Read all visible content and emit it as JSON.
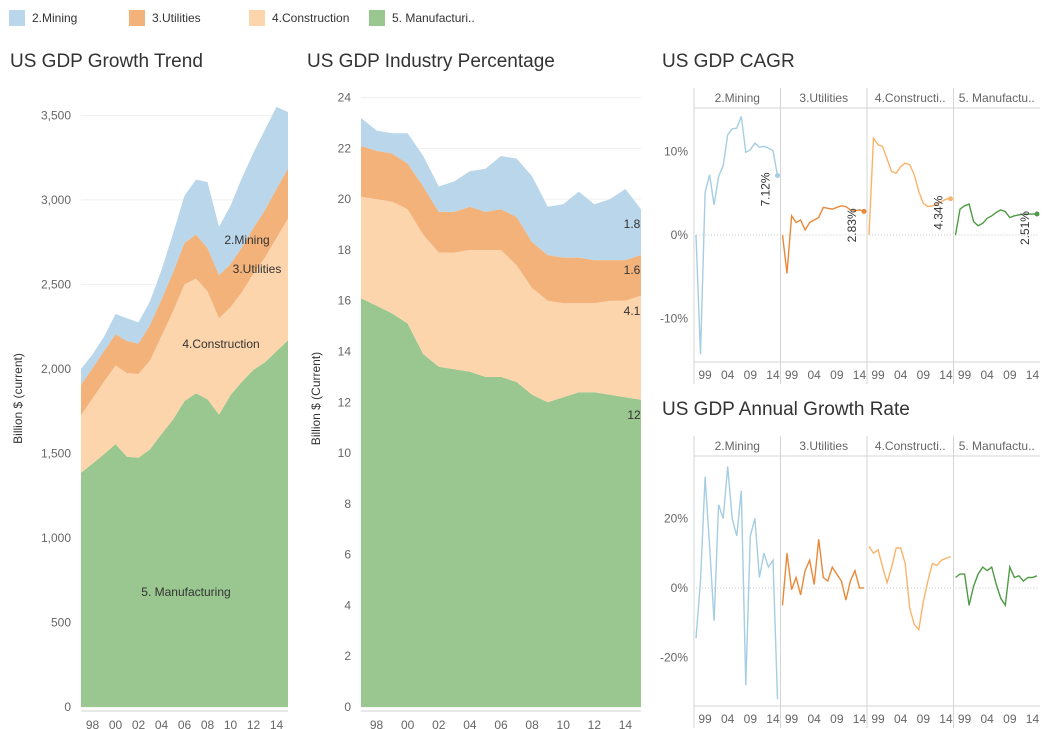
{
  "legend": {
    "items": [
      {
        "label": "2.Mining",
        "color": "#b9d6ea"
      },
      {
        "label": "3.Utilities",
        "color": "#f2b27a"
      },
      {
        "label": "4.Construction",
        "color": "#fdd5ac"
      },
      {
        "label": "5. Manufacturi..",
        "color": "#9ac68f"
      }
    ]
  },
  "colors": {
    "mining": "#b9d6ea",
    "utilities": "#f2b27a",
    "construction": "#fdd5ac",
    "manufacturing": "#9ac68f",
    "mining_line": "#a5cde3",
    "utilities_line": "#e8893a",
    "construction_line": "#f9b46a",
    "manufacturing_line": "#4f9a45"
  },
  "chart_data": [
    {
      "id": "trend",
      "type": "area",
      "stacked": true,
      "title": "US GDP Growth Trend",
      "ylabel": "Billion $ (current)",
      "ylim": [
        0,
        3650
      ],
      "yticks": [
        0,
        500,
        1000,
        1500,
        2000,
        2500,
        3000,
        3500
      ],
      "ytick_labels": [
        "0",
        "500",
        "1,000",
        "1,500",
        "2,000",
        "2,500",
        "3,000",
        "3,500"
      ],
      "xticks": [
        1998,
        2000,
        2002,
        2004,
        2006,
        2008,
        2010,
        2012,
        2014
      ],
      "xtick_labels": [
        "98",
        "00",
        "02",
        "04",
        "06",
        "08",
        "10",
        "12",
        "14"
      ],
      "x": [
        1997,
        1998,
        1999,
        2000,
        2001,
        2002,
        2003,
        2004,
        2005,
        2006,
        2007,
        2008,
        2009,
        2010,
        2011,
        2012,
        2013,
        2014,
        2015
      ],
      "series": [
        {
          "name": "5. Manufacturing",
          "key": "manufacturing",
          "values": [
            1385,
            1440,
            1495,
            1555,
            1480,
            1475,
            1525,
            1615,
            1700,
            1810,
            1855,
            1820,
            1730,
            1845,
            1925,
            1995,
            2040,
            2105,
            2170
          ]
        },
        {
          "name": "4.Construction",
          "key": "construction",
          "values": [
            340,
            385,
            430,
            465,
            495,
            495,
            525,
            580,
            640,
            690,
            680,
            640,
            570,
            520,
            530,
            570,
            620,
            670,
            720
          ]
        },
        {
          "name": "3.Utilities",
          "key": "utilities",
          "values": [
            180,
            180,
            180,
            185,
            190,
            180,
            210,
            215,
            230,
            245,
            260,
            255,
            255,
            255,
            265,
            270,
            280,
            290,
            295
          ]
        },
        {
          "name": "2.Mining",
          "key": "mining",
          "values": [
            95,
            80,
            85,
            120,
            135,
            125,
            140,
            175,
            230,
            280,
            325,
            390,
            285,
            345,
            410,
            445,
            475,
            485,
            335
          ]
        }
      ],
      "annotations": [
        "2.Mining",
        "3.Utilities",
        "4.Construction",
        "5. Manufacturing"
      ]
    },
    {
      "id": "percentage",
      "type": "area",
      "stacked": true,
      "title": "US GDP Industry Percentage",
      "ylabel": "Billion $ (Current)",
      "ylim": [
        0,
        24.3
      ],
      "yticks": [
        0,
        2,
        4,
        6,
        8,
        10,
        12,
        14,
        16,
        18,
        20,
        22,
        24
      ],
      "ytick_labels": [
        "0",
        "2",
        "4",
        "6",
        "8",
        "10",
        "12",
        "14",
        "16",
        "18",
        "20",
        "22",
        "24"
      ],
      "xticks": [
        1998,
        2000,
        2002,
        2004,
        2006,
        2008,
        2010,
        2012,
        2014
      ],
      "xtick_labels": [
        "98",
        "00",
        "02",
        "04",
        "06",
        "08",
        "10",
        "12",
        "14"
      ],
      "x": [
        1997,
        1998,
        1999,
        2000,
        2001,
        2002,
        2003,
        2004,
        2005,
        2006,
        2007,
        2008,
        2009,
        2010,
        2011,
        2012,
        2013,
        2014,
        2015
      ],
      "series": [
        {
          "name": "5. Manufacturing",
          "key": "manufacturing",
          "values": [
            16.1,
            15.8,
            15.5,
            15.1,
            13.9,
            13.4,
            13.3,
            13.2,
            13.0,
            13.0,
            12.8,
            12.3,
            12.0,
            12.2,
            12.4,
            12.4,
            12.3,
            12.2,
            12.1
          ]
        },
        {
          "name": "4.Construction",
          "key": "construction",
          "values": [
            4.0,
            4.2,
            4.4,
            4.5,
            4.7,
            4.5,
            4.6,
            4.8,
            5.0,
            5.0,
            4.6,
            4.2,
            4.0,
            3.7,
            3.5,
            3.5,
            3.7,
            3.8,
            4.1
          ]
        },
        {
          "name": "3.Utilities",
          "key": "utilities",
          "values": [
            2.0,
            1.9,
            1.9,
            1.8,
            1.9,
            1.6,
            1.6,
            1.7,
            1.5,
            1.6,
            1.9,
            1.8,
            1.8,
            1.8,
            1.8,
            1.7,
            1.6,
            1.6,
            1.6
          ]
        },
        {
          "name": "2.Mining",
          "key": "mining",
          "values": [
            1.1,
            0.8,
            0.8,
            1.2,
            1.2,
            1.0,
            1.2,
            1.4,
            1.7,
            2.1,
            2.3,
            2.6,
            1.9,
            2.1,
            2.6,
            2.2,
            2.4,
            2.8,
            1.8
          ]
        }
      ],
      "end_labels": [
        "1.8",
        "1.6",
        "4.1",
        "12"
      ]
    },
    {
      "id": "cagr",
      "type": "line",
      "title": "US GDP CAGR",
      "ylim": [
        -15.2,
        15.2
      ],
      "yticks": [
        -10,
        0,
        10
      ],
      "ytick_labels": [
        "-10%",
        "0%",
        "10%"
      ],
      "x": [
        1997,
        1998,
        1999,
        2000,
        2001,
        2002,
        2003,
        2004,
        2005,
        2006,
        2007,
        2008,
        2009,
        2010,
        2011,
        2012,
        2013,
        2014,
        2015
      ],
      "xticks": [
        1999,
        2004,
        2009,
        2014
      ],
      "xtick_labels": [
        "99",
        "04",
        "09",
        "14"
      ],
      "panels": [
        {
          "name": "2.Mining",
          "key": "mining",
          "values": [
            0.0,
            -14.3,
            5.1,
            7.2,
            3.6,
            7.0,
            8.3,
            12.0,
            12.7,
            12.8,
            14.2,
            9.9,
            10.2,
            11.0,
            10.5,
            10.6,
            10.4,
            10.1,
            7.12
          ],
          "end_label": "7.12%"
        },
        {
          "name": "3.Utilities",
          "key": "utilities",
          "values": [
            0.0,
            -4.6,
            2.3,
            1.5,
            1.8,
            0.6,
            1.5,
            1.8,
            2.1,
            3.3,
            3.2,
            3.1,
            3.3,
            3.5,
            3.4,
            3.0,
            2.9,
            3.0,
            2.83
          ],
          "end_label": "2.83%"
        },
        {
          "name": "4.Constructi..",
          "key": "construction",
          "values": [
            0.0,
            11.6,
            10.8,
            10.6,
            9.1,
            7.6,
            7.4,
            8.2,
            8.6,
            8.4,
            7.2,
            5.2,
            3.8,
            3.4,
            3.5,
            3.7,
            4.0,
            4.3,
            4.34
          ],
          "end_label": "4.34%"
        },
        {
          "name": "5. Manufactu..",
          "key": "manufacturing",
          "values": [
            0.0,
            3.1,
            3.5,
            3.7,
            1.6,
            1.1,
            1.4,
            2.0,
            2.3,
            2.7,
            3.0,
            2.8,
            2.1,
            2.3,
            2.4,
            2.5,
            2.5,
            2.5,
            2.51
          ],
          "end_label": "2.51%"
        }
      ]
    },
    {
      "id": "annual",
      "type": "line",
      "title": "US GDP Annual Growth Rate",
      "ylim": [
        -34,
        38
      ],
      "yticks": [
        -20,
        0,
        20
      ],
      "ytick_labels": [
        "-20%",
        "0%",
        "20%"
      ],
      "x": [
        1997,
        1998,
        1999,
        2000,
        2001,
        2002,
        2003,
        2004,
        2005,
        2006,
        2007,
        2008,
        2009,
        2010,
        2011,
        2012,
        2013,
        2014,
        2015
      ],
      "xticks": [
        1999,
        2004,
        2009,
        2014
      ],
      "xtick_labels": [
        "99",
        "04",
        "09",
        "14"
      ],
      "panels": [
        {
          "name": "2.Mining",
          "key": "mining",
          "values": [
            -14.5,
            2.0,
            32.0,
            12.0,
            -9.5,
            24.0,
            20.0,
            35.0,
            20.0,
            15.0,
            28.0,
            -28.0,
            15.0,
            20.0,
            3.0,
            10.0,
            6.0,
            8.0,
            -32.0
          ]
        },
        {
          "name": "3.Utilities",
          "key": "utilities",
          "values": [
            -5.0,
            10.0,
            -0.5,
            3.0,
            -2.0,
            5.0,
            8.0,
            1.0,
            14.0,
            3.0,
            2.0,
            6.0,
            4.0,
            2.0,
            -3.5,
            2.0,
            5.0,
            0.0,
            0.0
          ]
        },
        {
          "name": "4.Constructi..",
          "key": "construction",
          "values": [
            12.0,
            10.0,
            11.0,
            6.0,
            1.5,
            6.0,
            11.5,
            11.5,
            7.0,
            -6.0,
            -10.5,
            -12.0,
            -4.0,
            2.0,
            7.0,
            6.5,
            8.0,
            8.5,
            9.0
          ]
        },
        {
          "name": "5. Manufactu..",
          "key": "manufacturing",
          "values": [
            3.0,
            4.0,
            4.0,
            -5.0,
            0.5,
            4.0,
            6.0,
            5.0,
            6.0,
            1.0,
            -3.0,
            -5.0,
            6.0,
            3.0,
            3.5,
            2.0,
            3.0,
            3.0,
            3.5
          ]
        }
      ]
    }
  ]
}
